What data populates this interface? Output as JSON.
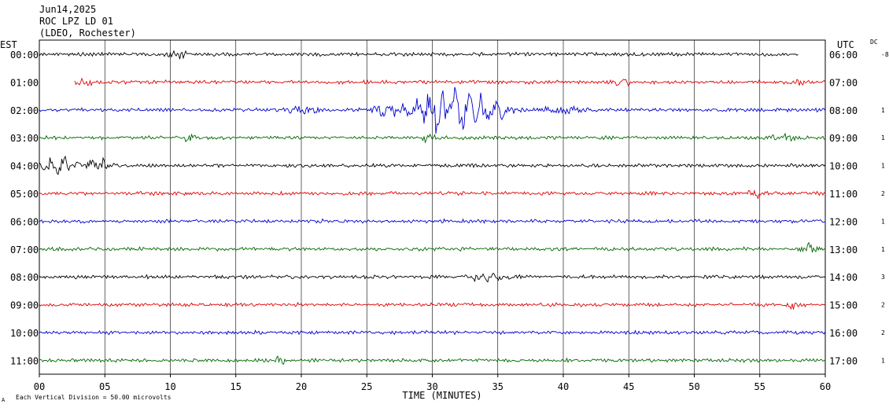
{
  "header": {
    "line1": "Jun14,2025",
    "line2": "ROC LPZ LD 01",
    "line3": "(LDEO, Rochester)"
  },
  "labels": {
    "left_tz": "EST",
    "right_tz": "UTC",
    "dc": "DC",
    "footer": "Each Vertical Division =   50.00 microvolts",
    "corner_mark": "A"
  },
  "colors": {
    "black": "#000000",
    "red": "#e00000",
    "blue": "#0000cc",
    "green": "#006600",
    "grid": "#000000"
  },
  "chart_data": {
    "type": "line",
    "title": "ROC LPZ LD 01",
    "xlabel": "TIME (MINUTES)",
    "xlim": [
      0,
      60
    ],
    "x_ticks": [
      "00",
      "05",
      "10",
      "15",
      "20",
      "25",
      "30",
      "35",
      "40",
      "45",
      "50",
      "55",
      "60"
    ],
    "grid": "vertical lines every 5 minutes",
    "rows": [
      {
        "est": "00:00",
        "utc": "06:00",
        "color": "black",
        "dc": "-8",
        "x_start": 0.0,
        "x_end": 58.0,
        "events": [
          {
            "t": 10.5,
            "amp": 5,
            "dur": 1.5
          }
        ]
      },
      {
        "est": "01:00",
        "utc": "07:00",
        "color": "red",
        "dc": "",
        "x_start": 2.7,
        "x_end": 60.0,
        "events": [
          {
            "t": 3.5,
            "amp": 4,
            "dur": 1.5
          },
          {
            "t": 44.5,
            "amp": 4,
            "dur": 1.5
          },
          {
            "t": 58,
            "amp": 3,
            "dur": 1
          }
        ]
      },
      {
        "est": "02:00",
        "utc": "08:00",
        "color": "blue",
        "dc": "1",
        "x_start": 0.0,
        "x_end": 60.0,
        "events": [
          {
            "t": 31,
            "amp": 30,
            "dur": 5
          },
          {
            "t": 34.5,
            "amp": 14,
            "dur": 3
          },
          {
            "t": 26.5,
            "amp": 9,
            "dur": 2
          },
          {
            "t": 20,
            "amp": 5,
            "dur": 3
          },
          {
            "t": 40,
            "amp": 5,
            "dur": 3
          }
        ]
      },
      {
        "est": "03:00",
        "utc": "09:00",
        "color": "green",
        "dc": "1",
        "x_start": 0.0,
        "x_end": 60.0,
        "events": [
          {
            "t": 11.5,
            "amp": 5,
            "dur": 1
          },
          {
            "t": 29.7,
            "amp": 5,
            "dur": 1
          },
          {
            "t": 57,
            "amp": 5,
            "dur": 2
          }
        ]
      },
      {
        "est": "04:00",
        "utc": "10:00",
        "color": "black",
        "dc": "1",
        "x_start": 0.0,
        "x_end": 60.0,
        "events": [
          {
            "t": 1.5,
            "amp": 12,
            "dur": 2.5
          },
          {
            "t": 4.5,
            "amp": 8,
            "dur": 2
          }
        ]
      },
      {
        "est": "05:00",
        "utc": "11:00",
        "color": "red",
        "dc": "2",
        "x_start": 0.0,
        "x_end": 60.0,
        "events": [
          {
            "t": 55,
            "amp": 5,
            "dur": 1.5
          }
        ]
      },
      {
        "est": "06:00",
        "utc": "12:00",
        "color": "blue",
        "dc": "1",
        "x_start": 0.0,
        "x_end": 60.0,
        "events": []
      },
      {
        "est": "07:00",
        "utc": "13:00",
        "color": "green",
        "dc": "1",
        "x_start": 0.0,
        "x_end": 60.0,
        "events": [
          {
            "t": 59,
            "amp": 6,
            "dur": 2
          }
        ]
      },
      {
        "est": "08:00",
        "utc": "14:00",
        "color": "black",
        "dc": "3",
        "x_start": 0.0,
        "x_end": 60.0,
        "events": [
          {
            "t": 34.5,
            "amp": 7,
            "dur": 3
          }
        ]
      },
      {
        "est": "09:00",
        "utc": "15:00",
        "color": "red",
        "dc": "2",
        "x_start": 0.0,
        "x_end": 60.0,
        "events": [
          {
            "t": 57.5,
            "amp": 5,
            "dur": 1
          }
        ]
      },
      {
        "est": "10:00",
        "utc": "16:00",
        "color": "blue",
        "dc": "2",
        "x_start": 0.0,
        "x_end": 60.0,
        "events": []
      },
      {
        "est": "11:00",
        "utc": "17:00",
        "color": "green",
        "dc": "1",
        "x_start": 0.0,
        "x_end": 60.0,
        "events": [
          {
            "t": 18.3,
            "amp": 4,
            "dur": 1
          }
        ]
      }
    ]
  }
}
